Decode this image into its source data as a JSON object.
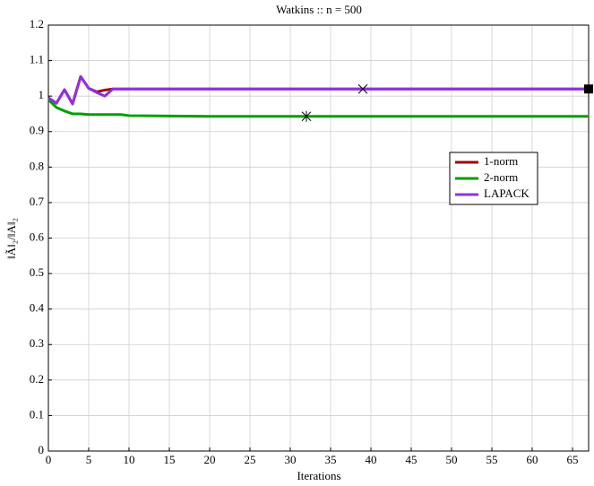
{
  "chart_data": {
    "type": "line",
    "title": "Watkins :: n = 500",
    "xlabel": "Iterations",
    "ylabel": "‖Ã‖₂/‖A‖₂",
    "xlim": [
      0,
      67
    ],
    "xticks": [
      0,
      5,
      10,
      15,
      20,
      25,
      30,
      35,
      40,
      45,
      50,
      55,
      60,
      65
    ],
    "ylim": [
      0,
      1.2
    ],
    "yticks": [
      0,
      0.1,
      0.2,
      0.3,
      0.4,
      0.5,
      0.6,
      0.7,
      0.8,
      0.9,
      1,
      1.1,
      1.2
    ],
    "grid": true,
    "legend": "right",
    "series": [
      {
        "name": "1-norm",
        "color": "#a00000",
        "x": [
          0,
          1,
          2,
          3,
          4,
          5,
          6,
          7,
          8,
          67
        ],
        "values": [
          0.995,
          0.98,
          1.018,
          0.978,
          1.055,
          1.022,
          1.012,
          1.017,
          1.02,
          1.02
        ]
      },
      {
        "name": "2-norm",
        "color": "#00a000",
        "x": [
          0,
          1,
          2,
          3,
          4,
          5,
          9,
          10,
          15,
          20,
          67
        ],
        "values": [
          0.99,
          0.968,
          0.958,
          0.95,
          0.95,
          0.948,
          0.948,
          0.945,
          0.944,
          0.943,
          0.943
        ]
      },
      {
        "name": "LAPACK",
        "color": "#9030e0",
        "x": [
          0,
          1,
          2,
          3,
          4,
          5,
          6,
          7,
          8,
          67
        ],
        "values": [
          0.995,
          0.98,
          1.018,
          0.978,
          1.055,
          1.022,
          1.01,
          1.0,
          1.02,
          1.02
        ]
      }
    ],
    "markers": [
      {
        "x": 39,
        "y": 1.02,
        "shape": "cross"
      },
      {
        "x": 32,
        "y": 0.943,
        "shape": "star"
      },
      {
        "x": 67,
        "y": 1.02,
        "shape": "square"
      }
    ]
  }
}
